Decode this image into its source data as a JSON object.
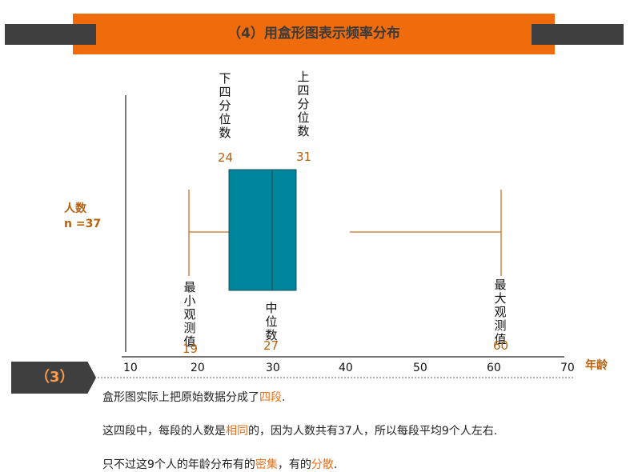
{
  "header": {
    "title": "（4）用盒形图表示频率分布"
  },
  "y_axis": {
    "label": "人数",
    "n": "n =37"
  },
  "x_axis": {
    "ticks": [
      "10",
      "20",
      "30",
      "40",
      "50",
      "60",
      "70"
    ],
    "label": "年龄"
  },
  "annotations": {
    "lower_quartile": {
      "label": "下四分位数",
      "value": "24"
    },
    "upper_quartile": {
      "label": "上四分位数",
      "value": "31"
    },
    "minimum": {
      "label": "最小观测值",
      "value": "19"
    },
    "median": {
      "label": "中位数",
      "value": "27"
    },
    "maximum": {
      "label": "最大观测值",
      "value": "60"
    }
  },
  "colors": {
    "header": "#f06b0b",
    "box": "#00869c",
    "accent": "#b5610f",
    "highlight": "#e8701a",
    "dark": "#3f3f3f"
  },
  "section": {
    "step": "（3）"
  },
  "notes": {
    "line1": {
      "a": "盒形图实际上把原始数据分成了",
      "b": "四段",
      "c": "."
    },
    "line2": {
      "a": "这四段中，每段的人数是",
      "b": "相同",
      "c": "的，因为人数共有37人，所以每段平均9个人左右."
    },
    "line3": {
      "a": "只不过这9个人的年龄分布有的",
      "b": "密集",
      "c": "，有的",
      "d": "分散",
      "e": "."
    }
  }
}
